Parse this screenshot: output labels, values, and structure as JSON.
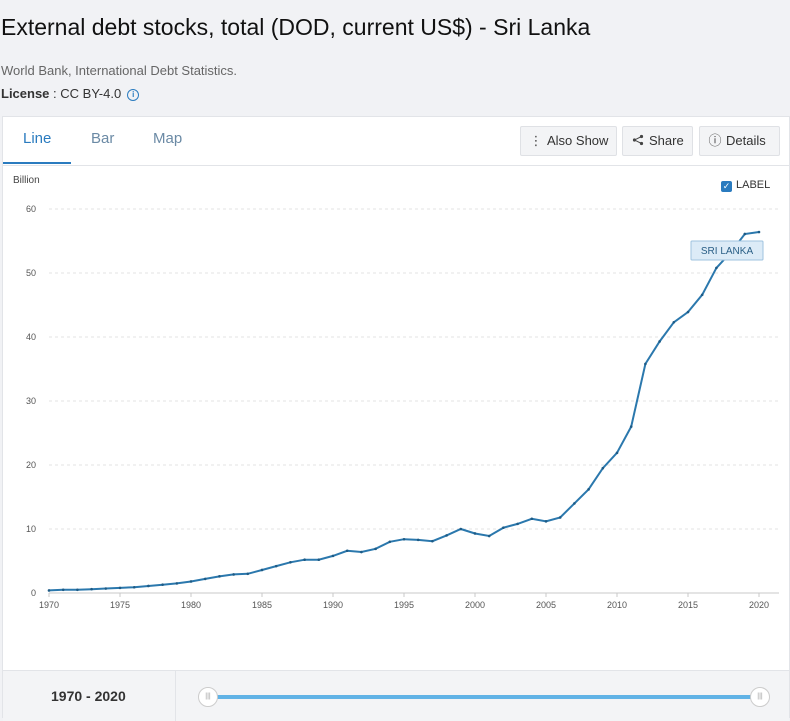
{
  "header": {
    "title": "External debt stocks, total (DOD, current US$) - Sri Lanka",
    "source": "World Bank, International Debt Statistics.",
    "license_label": "License",
    "license_value": " : CC BY-4.0",
    "info_icon": "i"
  },
  "tabs": [
    {
      "label": "Line",
      "active": true
    },
    {
      "label": "Bar",
      "active": false
    },
    {
      "label": "Map",
      "active": false
    }
  ],
  "toolbar": {
    "also_show_label": "Also Show",
    "also_show_icon": "⋮",
    "share_label": "Share",
    "share_icon": "⋖",
    "details_label": "Details",
    "details_icon": "ⓘ"
  },
  "chart_controls": {
    "label_toggle": "LABEL",
    "label_checked": true
  },
  "footer": {
    "range_start": "1970",
    "range_sep": " - ",
    "range_end": "2020",
    "handle_glyph": "|||"
  },
  "colors": {
    "accent": "#2a7bbf",
    "line": "#2b78ad",
    "slider": "#61b3e6",
    "series_label_bg": "#dcebf7"
  },
  "chart_data": {
    "type": "line",
    "title": "External debt stocks, total (DOD, current US$) - Sri Lanka",
    "ylabel": "Billion",
    "xlabel": "",
    "ylim": [
      0,
      60
    ],
    "xlim": [
      1970,
      2020
    ],
    "yticks": [
      0,
      10,
      20,
      30,
      40,
      50,
      60
    ],
    "xticks": [
      1970,
      1975,
      1980,
      1985,
      1990,
      1995,
      2000,
      2005,
      2010,
      2015,
      2020
    ],
    "grid": true,
    "series": [
      {
        "name": "SRI LANKA",
        "x": [
          1970,
          1971,
          1972,
          1973,
          1974,
          1975,
          1976,
          1977,
          1978,
          1979,
          1980,
          1981,
          1982,
          1983,
          1984,
          1985,
          1986,
          1987,
          1988,
          1989,
          1990,
          1991,
          1992,
          1993,
          1994,
          1995,
          1996,
          1997,
          1998,
          1999,
          2000,
          2001,
          2002,
          2003,
          2004,
          2005,
          2006,
          2007,
          2008,
          2009,
          2010,
          2011,
          2012,
          2013,
          2014,
          2015,
          2016,
          2017,
          2018,
          2019,
          2020
        ],
        "values": [
          0.4,
          0.5,
          0.5,
          0.6,
          0.7,
          0.8,
          0.9,
          1.1,
          1.3,
          1.5,
          1.8,
          2.2,
          2.6,
          2.9,
          3.0,
          3.6,
          4.2,
          4.8,
          5.2,
          5.2,
          5.8,
          6.6,
          6.4,
          6.9,
          8.0,
          8.4,
          8.3,
          8.1,
          9.0,
          10.0,
          9.3,
          8.9,
          10.2,
          10.8,
          11.6,
          11.2,
          11.8,
          14.0,
          16.2,
          19.5,
          21.9,
          26.0,
          35.8,
          39.3,
          42.3,
          43.9,
          46.6,
          50.8,
          53.2,
          56.1,
          56.4
        ]
      }
    ]
  }
}
